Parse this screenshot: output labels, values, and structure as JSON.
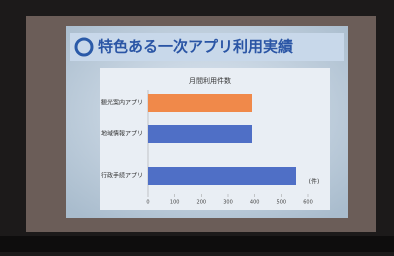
{
  "chart_data": {
    "type": "hbar",
    "title": "特色ある一次アプリ利用実績",
    "subtitle": "月間利用件数",
    "unit": "(件)",
    "categories": [
      "観光案内アプリ",
      "地域情報アプリ",
      "行政手続アプリ"
    ],
    "values": [
      390,
      390,
      555
    ],
    "colors": [
      "#f0894a",
      "#4f6fc6",
      "#4f6fc6"
    ],
    "xlim": [
      0,
      600
    ],
    "xticks": [
      0,
      100,
      200,
      300,
      400,
      500,
      600
    ]
  }
}
